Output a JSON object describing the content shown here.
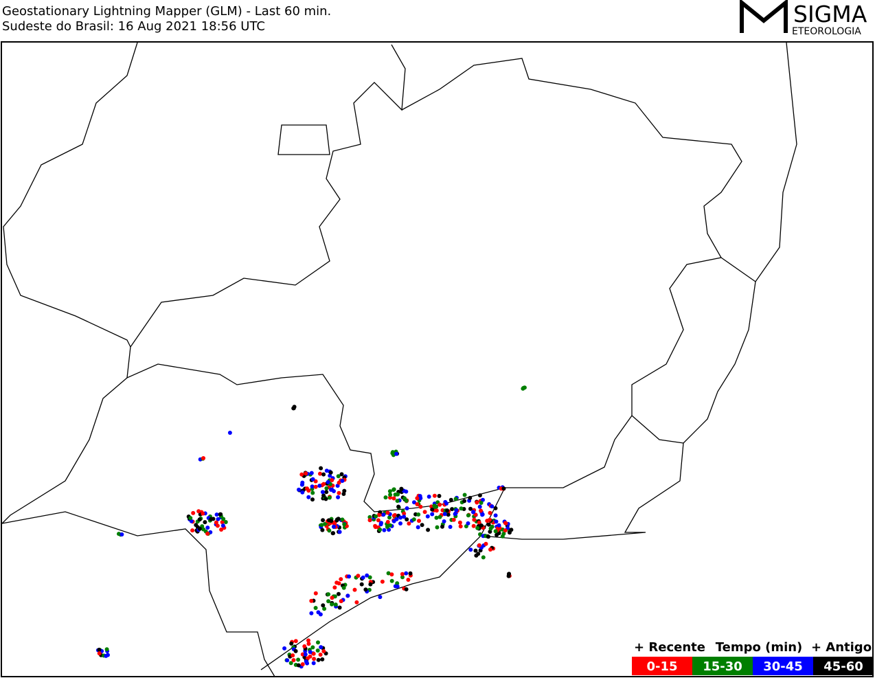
{
  "header": {
    "title": "Geostationary Lightning Mapper (GLM) - Last 60 min.",
    "subtitle": "Sudeste do Brasil:  16 Aug 2021 18:56 UTC"
  },
  "logo": {
    "name": "SIGMA",
    "tagline": "ETEOROLOGIA"
  },
  "legend": {
    "left": "+ Recente",
    "center": "Tempo (min)",
    "right": "+ Antigo",
    "bins": [
      {
        "label": "0-15",
        "color": "#ff0000"
      },
      {
        "label": "15-30",
        "color": "#007f00"
      },
      {
        "label": "30-45",
        "color": "#0000ff"
      },
      {
        "label": "45-60",
        "color": "#000000"
      }
    ]
  }
}
